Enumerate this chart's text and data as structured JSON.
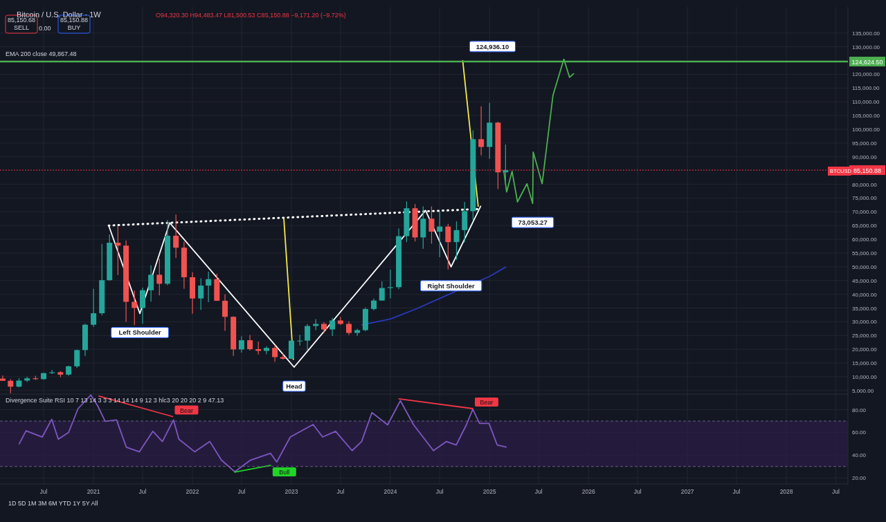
{
  "chart_data": [
    {
      "type": "candlestick",
      "title": "Bitcoin / U.S. Dollar · 1W",
      "subtitle": "O94,320.30 H94,483.47 L81,500.53 C85,150.88 −9,171.20 (−9.72%)",
      "xlim": [
        "2020-01-22",
        "2028-08-15"
      ],
      "ylim": [
        3700,
        144500
      ],
      "grid": true,
      "legend": false,
      "tick_labels": "y",
      "xticks": [
        {
          "value": "2020-07-01",
          "label": null
        },
        {
          "value": "2021-01-01",
          "label": null
        },
        {
          "value": "2021-07-01",
          "label": null
        },
        {
          "value": "2022-01-01",
          "label": null
        },
        {
          "value": "2022-07-01",
          "label": null
        },
        {
          "value": "2023-01-01",
          "label": null
        },
        {
          "value": "2023-07-01",
          "label": null
        },
        {
          "value": "2024-01-01",
          "label": null
        },
        {
          "value": "2024-07-01",
          "label": null
        },
        {
          "value": "2025-01-01",
          "label": null
        },
        {
          "value": "2025-07-01",
          "label": null
        },
        {
          "value": "2026-01-01",
          "label": null
        },
        {
          "value": "2026-07-01",
          "label": null
        },
        {
          "value": "2027-01-01",
          "label": null
        },
        {
          "value": "2027-07-01",
          "label": null
        },
        {
          "value": "2028-01-01",
          "label": null
        },
        {
          "value": "2028-07-01",
          "label": null
        }
      ],
      "yticks": [
        {
          "value": 5000,
          "label": "5,000.00"
        },
        {
          "value": 10000,
          "label": "10,000.00"
        },
        {
          "value": 15000,
          "label": "15,000.00"
        },
        {
          "value": 20000,
          "label": "20,000.00"
        },
        {
          "value": 25000,
          "label": "25,000.00"
        },
        {
          "value": 30000,
          "label": "30,000.00"
        },
        {
          "value": 35000,
          "label": "35,000.00"
        },
        {
          "value": 40000,
          "label": "40,000.00"
        },
        {
          "value": 45000,
          "label": "45,000.00"
        },
        {
          "value": 50000,
          "label": "50,000.00"
        },
        {
          "value": 55000,
          "label": "55,000.00"
        },
        {
          "value": 60000,
          "label": "60,000.00"
        },
        {
          "value": 65000,
          "label": "65,000.00"
        },
        {
          "value": 70000,
          "label": "70,000.00"
        },
        {
          "value": 75000,
          "label": "75,000.00"
        },
        {
          "value": 80000,
          "label": "80,000.00"
        },
        {
          "value": 90000,
          "label": "90,000.00"
        },
        {
          "value": 95000,
          "label": "95,000.00"
        },
        {
          "value": 100000,
          "label": "100,000.00"
        },
        {
          "value": 105000,
          "label": "105,000.00"
        },
        {
          "value": 110000,
          "label": "110,000.00"
        },
        {
          "value": 115000,
          "label": "115,000.00"
        },
        {
          "value": 120000,
          "label": "120,000.00"
        },
        {
          "value": 130000,
          "label": "130,000.00"
        },
        {
          "value": 135000,
          "label": "135,000.00"
        }
      ],
      "ref_lines": [
        {
          "axis": "y",
          "value": 124624.5,
          "label": "124,624.50",
          "color": "#4caf50",
          "line_style": "solid"
        },
        {
          "axis": "y",
          "value": 85150.88,
          "label": "85,150.88",
          "color": "#f23645",
          "line_style": "dotted"
        }
      ],
      "annotations": [
        "85,150.68\nSELL",
        "0.00",
        "85,150.88\nBUY",
        "EMA 200 close 49,867.48",
        "1D  5D  1M  3M  6M  YTD  1Y  5Y  All",
        "BTCUSD",
        {
          "text": "Left Shoulder",
          "x": "2021-06-21",
          "y": 33000
        },
        {
          "text": "Head",
          "x": "2023-01-11",
          "y": 13500
        },
        {
          "text": "Right Shoulder",
          "x": "2024-08-12",
          "y": 50000
        },
        {
          "text": "124,936.10",
          "x": "2024-09-24",
          "y": 124936.1
        },
        {
          "text": "73,053.27",
          "x": "2025-06-09",
          "y": 73053.27
        }
      ],
      "series": [
        {
          "type": "candlestick",
          "x": [
            "2020-02",
            "2020-03",
            "2020-04",
            "2020-05",
            "2020-06",
            "2020-07",
            "2020-08",
            "2020-09",
            "2020-10",
            "2020-11",
            "2020-12",
            "2021-01",
            "2021-02",
            "2021-03",
            "2021-04",
            "2021-05",
            "2021-06",
            "2021-07",
            "2021-08",
            "2021-09",
            "2021-10",
            "2021-11",
            "2021-12",
            "2022-01",
            "2022-02",
            "2022-03",
            "2022-04",
            "2022-05",
            "2022-06",
            "2022-07",
            "2022-08",
            "2022-09",
            "2022-10",
            "2022-11",
            "2022-12",
            "2023-01",
            "2023-02",
            "2023-03",
            "2023-04",
            "2023-05",
            "2023-06",
            "2023-07",
            "2023-08",
            "2023-09",
            "2023-10",
            "2023-11",
            "2023-12",
            "2024-01",
            "2024-02",
            "2024-03",
            "2024-04",
            "2024-05",
            "2024-06",
            "2024-07",
            "2024-08",
            "2024-09",
            "2024-10",
            "2024-11",
            "2024-12",
            "2025-01",
            "2025-02",
            "2025-03"
          ],
          "ohlc": [
            [
              9350,
              10500,
              8450,
              8540
            ],
            [
              8540,
              9190,
              4000,
              6410
            ],
            [
              6410,
              9470,
              6150,
              8620
            ],
            [
              8620,
              10080,
              8100,
              9450
            ],
            [
              9450,
              10380,
              8830,
              9140
            ],
            [
              9140,
              11450,
              8900,
              11340
            ],
            [
              11340,
              12470,
              10980,
              11650
            ],
            [
              11650,
              12090,
              9880,
              10780
            ],
            [
              10780,
              14100,
              10370,
              13800
            ],
            [
              13800,
              19860,
              13200,
              19700
            ],
            [
              19700,
              29300,
              17570,
              28920
            ],
            [
              28920,
              41950,
              28130,
              33100
            ],
            [
              33100,
              58350,
              32300,
              45130
            ],
            [
              45130,
              61790,
              44960,
              58740
            ],
            [
              58740,
              64850,
              47040,
              57690
            ],
            [
              57690,
              59600,
              30000,
              37250
            ],
            [
              37250,
              41330,
              28800,
              35040
            ],
            [
              35040,
              42450,
              29280,
              41460
            ],
            [
              41460,
              50500,
              37330,
              47100
            ],
            [
              47100,
              52920,
              39600,
              43820
            ],
            [
              43820,
              67000,
              43280,
              61300
            ],
            [
              61300,
              69000,
              53260,
              56950
            ],
            [
              56950,
              59050,
              42000,
              46200
            ],
            [
              46200,
              47990,
              32920,
              38470
            ],
            [
              38470,
              45820,
              34320,
              43160
            ],
            [
              43160,
              48190,
              37160,
              45510
            ],
            [
              45510,
              47440,
              37580,
              37630
            ],
            [
              37630,
              39980,
              26700,
              31800
            ],
            [
              31800,
              31990,
              17620,
              19940
            ],
            [
              19940,
              24670,
              18780,
              23290
            ],
            [
              23290,
              25210,
              19520,
              20050
            ],
            [
              20050,
              22800,
              18120,
              19420
            ],
            [
              19420,
              21090,
              18190,
              20490
            ],
            [
              20490,
              21480,
              15480,
              17160
            ],
            [
              17160,
              18390,
              16250,
              16540
            ],
            [
              16540,
              23960,
              16500,
              23120
            ],
            [
              23120,
              25250,
              21350,
              23140
            ],
            [
              23140,
              29180,
              19550,
              28470
            ],
            [
              28470,
              31000,
              26940,
              29230
            ],
            [
              29230,
              29820,
              25810,
              27210
            ],
            [
              27210,
              31390,
              24800,
              30470
            ],
            [
              30470,
              31800,
              28860,
              29230
            ],
            [
              29230,
              30190,
              25170,
              25940
            ],
            [
              25940,
              27480,
              24900,
              26960
            ],
            [
              26960,
              35200,
              26550,
              34640
            ],
            [
              34640,
              38450,
              34100,
              37720
            ],
            [
              37720,
              44700,
              37620,
              42280
            ],
            [
              42280,
              48970,
              38550,
              42580
            ],
            [
              42580,
              63910,
              41880,
              61130
            ],
            [
              61130,
              73780,
              59000,
              71280
            ],
            [
              71280,
              72800,
              59190,
              60670
            ],
            [
              60670,
              71980,
              56550,
              67490
            ],
            [
              67490,
              71950,
              58400,
              62770
            ],
            [
              62770,
              70080,
              53500,
              64630
            ],
            [
              64630,
              65600,
              49000,
              58970
            ],
            [
              58970,
              66500,
              52550,
              63330
            ],
            [
              63330,
              73620,
              58900,
              70220
            ],
            [
              70220,
              99590,
              66800,
              96400
            ],
            [
              96400,
              108350,
              90500,
              93580
            ],
            [
              93580,
              109590,
              89260,
              102430
            ],
            [
              102430,
              102750,
              78250,
              84350
            ],
            [
              84350,
              94483.47,
              80000,
              85150.88
            ]
          ],
          "colors": [
            "#ef5350",
            "#ef5350",
            "#26a69a",
            "#26a69a",
            "#ef5350",
            "#26a69a",
            "#26a69a",
            "#ef5350",
            "#26a69a",
            "#26a69a",
            "#26a69a",
            "#26a69a",
            "#26a69a",
            "#26a69a",
            "#ef5350",
            "#ef5350",
            "#ef5350",
            "#26a69a",
            "#26a69a",
            "#ef5350",
            "#26a69a",
            "#ef5350",
            "#ef5350",
            "#ef5350",
            "#26a69a",
            "#26a69a",
            "#ef5350",
            "#ef5350",
            "#ef5350",
            "#26a69a",
            "#ef5350",
            "#ef5350",
            "#26a69a",
            "#ef5350",
            "#ef5350",
            "#26a69a",
            "#26a69a",
            "#26a69a",
            "#26a69a",
            "#ef5350",
            "#26a69a",
            "#ef5350",
            "#ef5350",
            "#26a69a",
            "#26a69a",
            "#26a69a",
            "#26a69a",
            "#26a69a",
            "#26a69a",
            "#26a69a",
            "#ef5350",
            "#26a69a",
            "#ef5350",
            "#26a69a",
            "#ef5350",
            "#26a69a",
            "#26a69a",
            "#26a69a",
            "#ef5350",
            "#26a69a",
            "#ef5350",
            "#26a69a"
          ]
        },
        {
          "type": "line",
          "color": "#2a39b8",
          "line_style": "solid",
          "x": [
            "2023-09-18",
            "2024-01-01",
            "2024-04-01",
            "2024-07-01",
            "2025-01-01",
            "2025-03-01"
          ],
          "values": [
            28900,
            31000,
            34500,
            38500,
            46500,
            49867.48
          ]
        },
        {
          "type": "line",
          "color": "#ffffff",
          "line_style": "solid",
          "x": [
            "2021-02-26",
            "2021-06-21",
            "2021-10-09",
            "2023-01-11",
            "2024-05-10",
            "2024-08-12",
            "2024-11-29"
          ],
          "values": [
            65000,
            33000,
            66000,
            13500,
            70500,
            50000,
            72000
          ]
        },
        {
          "type": "line",
          "color": "#ffffff",
          "line_style": "dotted",
          "x": [
            "2021-02-26",
            "2024-11-20"
          ],
          "values": [
            65000,
            71000
          ]
        },
        {
          "type": "line",
          "color": "#f5e94a",
          "line_style": "solid",
          "x": [
            "2022-12-04",
            "2023-01-08"
          ],
          "values": [
            67600,
            16300
          ]
        },
        {
          "type": "line",
          "color": "#f5e94a",
          "line_style": "solid",
          "x": [
            "2024-09-24",
            "2024-11-20"
          ],
          "values": [
            124936.1,
            72000
          ]
        },
        {
          "type": "line",
          "color": "#4caf50",
          "line_style": "solid",
          "x": [
            "2025-02-23",
            "2025-03-05",
            "2025-03-25",
            "2025-04-14",
            "2025-05-19",
            "2025-06-09",
            "2025-06-11",
            "2025-07-14",
            "2025-08-23",
            "2025-10-02",
            "2025-10-23",
            "2025-11-07"
          ],
          "values": [
            84700,
            77200,
            84700,
            73600,
            80200,
            73053.27,
            91700,
            80200,
            112400,
            125500,
            118900,
            120200
          ]
        }
      ]
    },
    {
      "type": "line",
      "title": "Divergence Suite RSI 10 7 13 14 3 3 3 14 14 14 9 12 3 hlc3 20 20 20 2 9  47.13",
      "xlim": [
        "2020-01-22",
        "2028-08-15"
      ],
      "ylim": [
        14.6,
        93.8
      ],
      "grid": true,
      "legend": false,
      "ref_lines": [
        {
          "axis": "y",
          "value": 70,
          "color": "#6b5a8a",
          "line_style": "dashed"
        },
        {
          "axis": "y",
          "value": 30,
          "color": "#6b5a8a",
          "line_style": "dashed"
        }
      ],
      "xticks": [
        {
          "value": "2020-07-01",
          "label": "Jul"
        },
        {
          "value": "2021-01-01",
          "label": "2021"
        },
        {
          "value": "2021-07-01",
          "label": "Jul"
        },
        {
          "value": "2022-01-01",
          "label": "2022"
        },
        {
          "value": "2022-07-01",
          "label": "Jul"
        },
        {
          "value": "2023-01-01",
          "label": "2023"
        },
        {
          "value": "2023-07-01",
          "label": "Jul"
        },
        {
          "value": "2024-01-01",
          "label": "2024"
        },
        {
          "value": "2024-07-01",
          "label": "Jul"
        },
        {
          "value": "2025-01-01",
          "label": "2025"
        },
        {
          "value": "2025-07-01",
          "label": "Jul"
        },
        {
          "value": "2026-01-01",
          "label": "2026"
        },
        {
          "value": "2026-07-01",
          "label": "Jul"
        },
        {
          "value": "2027-01-01",
          "label": "2027"
        },
        {
          "value": "2027-07-01",
          "label": "Jul"
        },
        {
          "value": "2028-01-01",
          "label": "2028"
        },
        {
          "value": "2028-07-01",
          "label": "Jul"
        }
      ],
      "yticks": [
        {
          "value": 20,
          "label": "20.00"
        },
        {
          "value": 40,
          "label": "40.00"
        },
        {
          "value": 60,
          "label": "60.00"
        },
        {
          "value": 80,
          "label": "80.00"
        }
      ],
      "bands": [
        {
          "axis": "y",
          "from": 30,
          "to": 70,
          "color": "#2b1d45"
        }
      ],
      "series": [
        {
          "color": "#7e57c2",
          "line_style": "solid",
          "x": [
            "2020-04-02",
            "2020-04-27",
            "2020-06-26",
            "2020-07-31",
            "2020-08-24",
            "2020-10-01",
            "2020-11-05",
            "2020-12-22",
            "2021-01-16",
            "2021-02-13",
            "2021-03-27",
            "2021-05-02",
            "2021-06-19",
            "2021-08-08",
            "2021-09-12",
            "2021-10-23",
            "2021-11-12",
            "2022-01-09",
            "2022-03-06",
            "2022-04-18",
            "2022-06-06",
            "2022-08-03",
            "2022-10-16",
            "2022-11-08",
            "2022-12-28",
            "2023-03-22",
            "2023-04-26",
            "2023-06-13",
            "2023-08-13",
            "2023-09-17",
            "2023-10-25",
            "2023-12-22",
            "2024-02-07",
            "2024-03-26",
            "2024-06-08",
            "2024-07-26",
            "2024-08-31",
            "2024-10-08",
            "2024-10-31",
            "2024-11-25",
            "2024-12-30",
            "2025-01-29",
            "2025-03-03"
          ],
          "values": [
            50,
            61.4,
            56,
            71.6,
            54,
            60,
            81,
            93,
            83.6,
            69.8,
            71,
            47,
            43,
            61,
            52,
            71,
            54,
            43,
            52,
            35.6,
            25.4,
            35.6,
            41.6,
            34,
            56,
            67,
            56,
            61,
            44,
            52,
            77.5,
            66.7,
            88,
            67,
            44,
            52,
            49,
            67,
            80.5,
            68,
            68,
            49,
            47.13
          ]
        },
        {
          "name": "Bear",
          "color": "#f23645",
          "line_style": "solid",
          "x": [
            "2021-01-21",
            "2021-10-20"
          ],
          "values": [
            92,
            74
          ]
        },
        {
          "name": "Bull",
          "color": "#22d32a",
          "line_style": "solid",
          "x": [
            "2022-06-06",
            "2022-10-16"
          ],
          "values": [
            25,
            31
          ]
        },
        {
          "name": "Bear",
          "color": "#f23645",
          "line_style": "solid",
          "x": [
            "2024-02-02",
            "2024-10-31"
          ],
          "values": [
            89.6,
            81
          ]
        }
      ]
    }
  ]
}
